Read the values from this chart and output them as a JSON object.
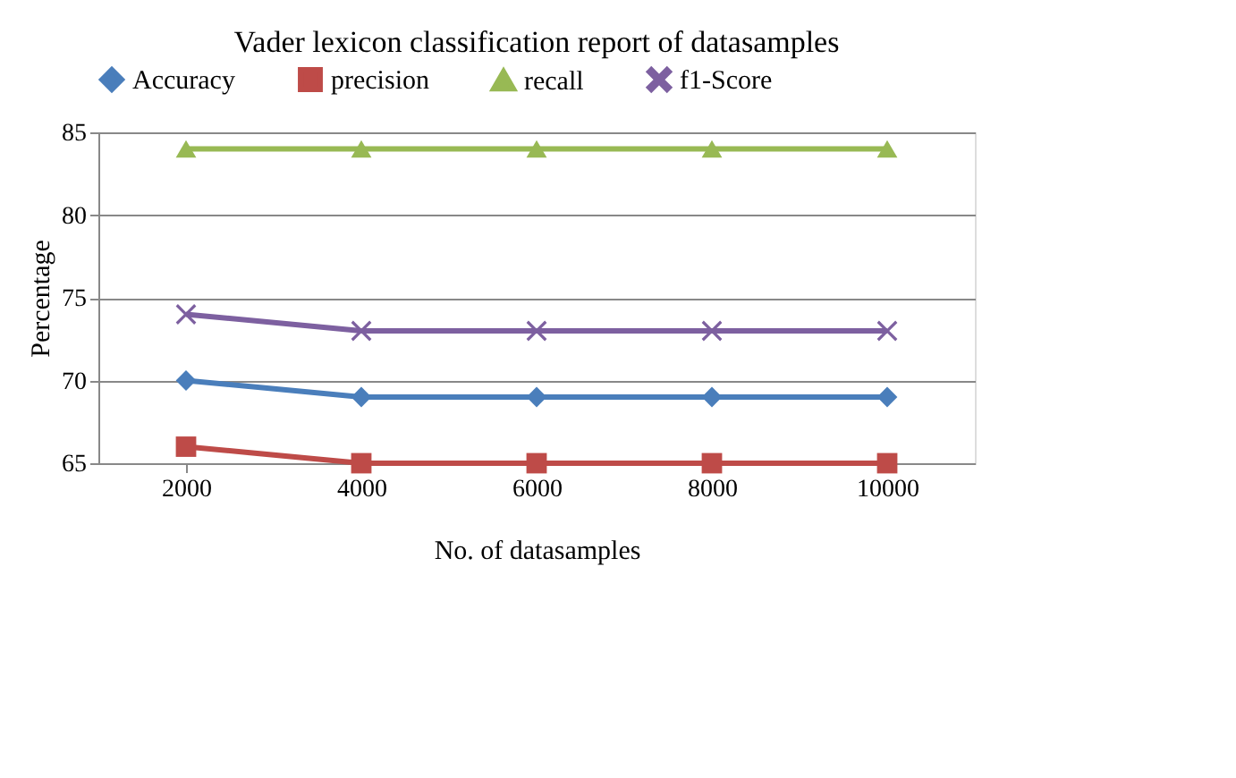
{
  "chart_data": {
    "type": "line",
    "title": "Vader lexicon classification report of datasamples",
    "xlabel": "No. of datasamples",
    "ylabel": "Percentage",
    "categories": [
      "2000",
      "4000",
      "6000",
      "8000",
      "10000"
    ],
    "series": [
      {
        "name": "Accuracy",
        "color": "#4a7ebb",
        "marker": "diamond",
        "values": [
          70,
          69,
          69,
          69,
          69
        ]
      },
      {
        "name": "precision",
        "color": "#be4b48",
        "marker": "square",
        "values": [
          66,
          65,
          65,
          65,
          65
        ]
      },
      {
        "name": "recall",
        "color": "#98b954",
        "marker": "triangle",
        "values": [
          84,
          84,
          84,
          84,
          84
        ]
      },
      {
        "name": "f1-Score",
        "color": "#7d60a0",
        "marker": "cross",
        "values": [
          74,
          73,
          73,
          73,
          73
        ]
      }
    ],
    "ylim": [
      65,
      85
    ],
    "yticks": [
      65,
      70,
      75,
      80,
      85
    ],
    "grid": "y",
    "legend": "top",
    "line_style": "solid"
  }
}
